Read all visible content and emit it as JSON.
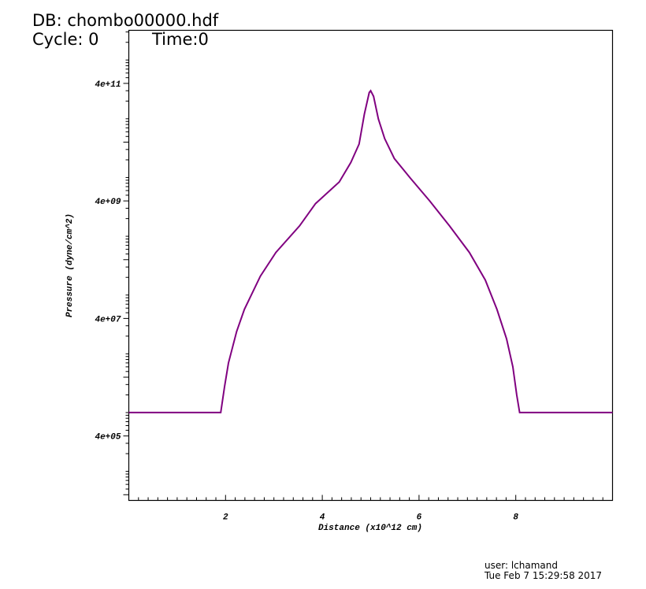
{
  "header": {
    "db_label": "DB: chombo00000.hdf",
    "cycle_label": "Cycle: 0",
    "time_label": "Time:0"
  },
  "footer": {
    "user": "user: lchamand",
    "date": "Tue Feb  7 15:29:58 2017"
  },
  "chart_data": {
    "type": "line",
    "title": "",
    "xlabel": "Distance (x10^12 cm)",
    "ylabel": "Pressure (dyne/cm^2)",
    "xlim": [
      0,
      10
    ],
    "ylim": [
      32000.0,
      3200000000000.0
    ],
    "yscale": "log",
    "x_ticks": [
      "2",
      "4",
      "6",
      "8"
    ],
    "y_ticks": [
      "4e+05",
      "4e+07",
      "4e+09",
      "4e+11"
    ],
    "grid": false,
    "line_color": "#800080",
    "series": [
      {
        "x": [
          0,
          1.9,
          1.98,
          2.06,
          2.23,
          2.39,
          2.72,
          3.04,
          3.53,
          3.86,
          4.35,
          4.59,
          4.76,
          4.87,
          4.97,
          5.0,
          5.06,
          5.16,
          5.29,
          5.49,
          5.82,
          6.22,
          6.63,
          7.04,
          7.37,
          7.61,
          7.81,
          7.94,
          8.02,
          8.08,
          10.0
        ],
        "y": [
          1000000.0,
          1000000.0,
          2800000.0,
          7000000.0,
          24000000.0,
          57000000.0,
          210000000.0,
          530000000.0,
          1500000000.0,
          3600000000.0,
          8400000000.0,
          18000000000.0,
          37000000000.0,
          120000000000.0,
          280000000000.0,
          300000000000.0,
          240000000000.0,
          99000000000.0,
          46000000000.0,
          21000000000.0,
          9800000000.0,
          4000000000.0,
          1500000000.0,
          530000000.0,
          180000000.0,
          57000000.0,
          18000000.0,
          6000000.0,
          2000000.0,
          1000000.0,
          1000000.0
        ]
      }
    ]
  }
}
